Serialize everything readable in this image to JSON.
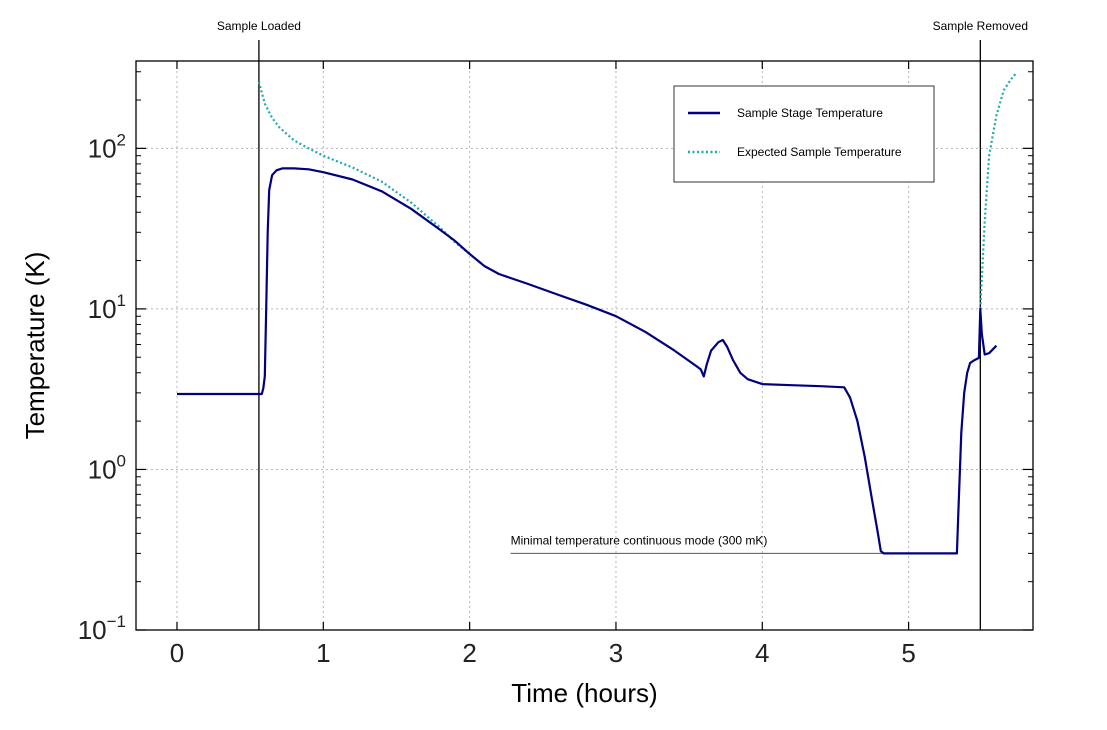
{
  "chart_data": {
    "type": "line",
    "title": "",
    "xlabel": "Time (hours)",
    "ylabel": "Temperature (K)",
    "xlim": [
      -0.28,
      5.85
    ],
    "ylim": [
      0.1,
      350
    ],
    "y_scale": "log",
    "grid": true,
    "legend_position": "top-right",
    "x_ticks": [
      {
        "value": 0,
        "label": "0"
      },
      {
        "value": 1,
        "label": "1"
      },
      {
        "value": 2,
        "label": "2"
      },
      {
        "value": 3,
        "label": "3"
      },
      {
        "value": 4,
        "label": "4"
      },
      {
        "value": 5,
        "label": "5"
      }
    ],
    "y_ticks": [
      {
        "value": 0.1,
        "base": "10",
        "exp": "−1"
      },
      {
        "value": 1,
        "base": "10",
        "exp": "0"
      },
      {
        "value": 10,
        "base": "10",
        "exp": "1"
      },
      {
        "value": 100,
        "base": "10",
        "exp": "2"
      }
    ],
    "series": [
      {
        "name": "Sample Stage Temperature",
        "color": "#000080",
        "style": "solid",
        "x": [
          0,
          0.3,
          0.58,
          0.59,
          0.6,
          0.61,
          0.62,
          0.63,
          0.65,
          0.68,
          0.72,
          0.8,
          0.9,
          1.0,
          1.2,
          1.4,
          1.6,
          1.8,
          1.9,
          2.0,
          2.1,
          2.2,
          2.4,
          2.6,
          2.8,
          3.0,
          3.2,
          3.4,
          3.55,
          3.58,
          3.6,
          3.62,
          3.65,
          3.7,
          3.73,
          3.76,
          3.8,
          3.85,
          3.9,
          4.0,
          4.2,
          4.4,
          4.56,
          4.6,
          4.65,
          4.7,
          4.75,
          4.79,
          4.81,
          4.83,
          4.85,
          5.0,
          5.2,
          5.33,
          5.34,
          5.36,
          5.38,
          5.4,
          5.42,
          5.45,
          5.48,
          5.49,
          5.5,
          5.52,
          5.55,
          5.6
        ],
        "y": [
          2.95,
          2.95,
          2.95,
          3.2,
          3.8,
          10,
          30,
          55,
          68,
          73,
          75,
          75,
          74,
          71,
          64,
          54,
          42,
          31,
          26.5,
          22,
          18.5,
          16.5,
          14.3,
          12.3,
          10.6,
          9,
          7.2,
          5.5,
          4.4,
          4.2,
          3.8,
          4.5,
          5.5,
          6.2,
          6.4,
          5.8,
          4.8,
          4.0,
          3.65,
          3.4,
          3.35,
          3.3,
          3.25,
          2.8,
          2.0,
          1.2,
          0.65,
          0.4,
          0.31,
          0.3,
          0.3,
          0.3,
          0.3,
          0.3,
          0.55,
          1.7,
          3.0,
          4.0,
          4.6,
          4.8,
          4.95,
          10,
          7,
          5.2,
          5.3,
          5.9
        ]
      },
      {
        "name": "Expected Sample Temperature",
        "color": "#1fa8b0",
        "style": "dotted",
        "x": [
          0.56,
          0.6,
          0.65,
          0.7,
          0.8,
          0.9,
          1.0,
          1.2,
          1.4,
          1.6,
          1.8,
          1.9,
          2.0,
          5.49,
          5.52,
          5.55,
          5.6,
          5.65,
          5.7,
          5.73
        ],
        "y": [
          260,
          190,
          155,
          135,
          112,
          100,
          90,
          76,
          62,
          46,
          32,
          26,
          22,
          10,
          35,
          90,
          160,
          230,
          270,
          290
        ]
      }
    ],
    "annotations": [
      {
        "text": "Sample Loaded",
        "x": 0.56
      },
      {
        "text": "Sample Removed",
        "x": 5.49
      },
      {
        "text": "Minimal temperature continuous mode (300 mK)",
        "x_start": 2.28,
        "x_end": 4.83,
        "y": 0.3
      }
    ]
  }
}
